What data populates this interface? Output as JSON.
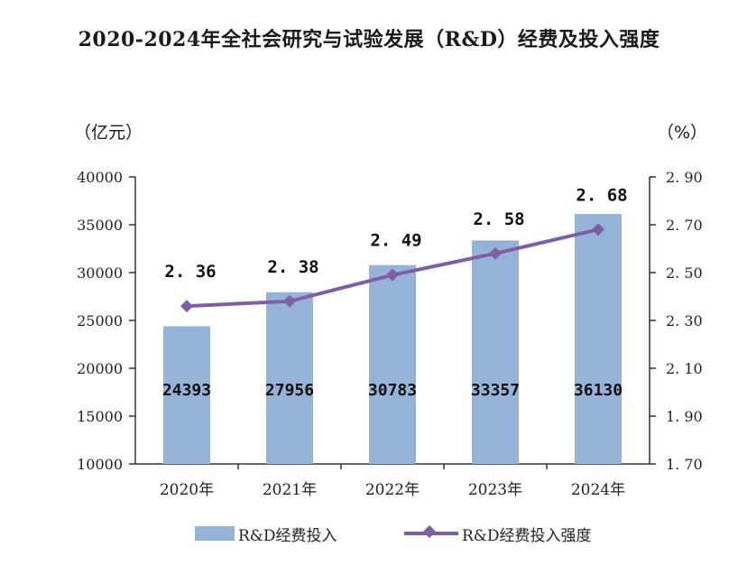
{
  "title": "2020-2024年全社会研究与试验发展（R&D）经费及投入强度",
  "left_unit": "（亿元）",
  "right_unit": "（%）",
  "colors": {
    "bar": "#95b3d7",
    "line": "#7f5fa4"
  },
  "chart_data": {
    "type": "bar",
    "categories": [
      "2020年",
      "2021年",
      "2022年",
      "2023年",
      "2024年"
    ],
    "series": [
      {
        "name": "R&D经费投入",
        "type": "bar",
        "axis": "left",
        "values": [
          24393,
          27956,
          30783,
          33357,
          36130
        ],
        "labels": [
          "24393",
          "27956",
          "30783",
          "33357",
          "36130"
        ]
      },
      {
        "name": "R&D经费投入强度",
        "type": "line",
        "axis": "right",
        "marker": "diamond",
        "values": [
          2.36,
          2.38,
          2.49,
          2.58,
          2.68
        ],
        "labels": [
          "2.36",
          "2.38",
          "2.49",
          "2.58",
          "2.68"
        ]
      }
    ],
    "left_axis": {
      "min": 10000,
      "max": 40000,
      "ticks": [
        "10000",
        "15000",
        "20000",
        "25000",
        "30000",
        "35000",
        "40000"
      ]
    },
    "right_axis": {
      "min": 1.7,
      "max": 2.9,
      "ticks": [
        "1.70",
        "1.90",
        "2.10",
        "2.30",
        "2.50",
        "2.70",
        "2.90"
      ]
    },
    "legend": [
      "R&D经费投入",
      "R&D经费投入强度"
    ],
    "legend_position": "bottom",
    "grid": false
  }
}
